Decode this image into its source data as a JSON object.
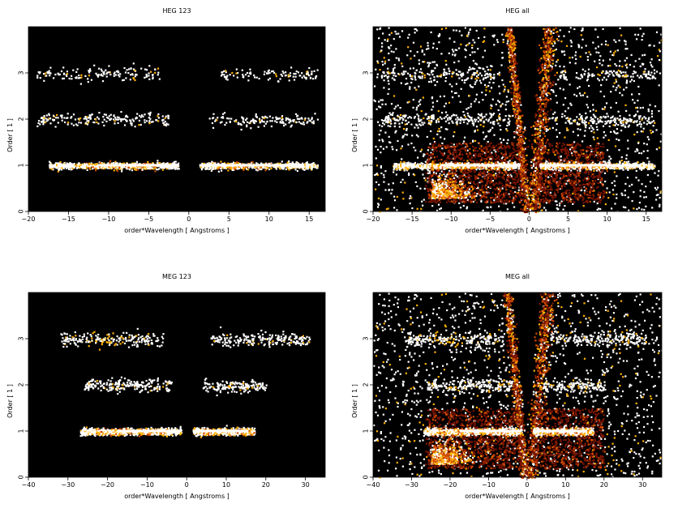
{
  "chart_data": [
    {
      "type": "heatmap",
      "title": "HEG 123",
      "xlabel": "order*Wavelength [ Angstroms ]",
      "ylabel": "Order [ 1 ]",
      "xlim": [
        -20,
        17
      ],
      "ylim": [
        0,
        4
      ],
      "xticks": [
        -20,
        -15,
        -10,
        -5,
        0,
        5,
        10,
        15
      ],
      "yticks": [
        0,
        1,
        2,
        3
      ],
      "colormap": [
        "#000000",
        "#7a1400",
        "#d24a00",
        "#ffb000",
        "#ffffff"
      ],
      "bands": [
        {
          "order": 1,
          "xmin": -17.5,
          "xmax": 16.0,
          "gap": [
            -1.3,
            1.3
          ],
          "peak": -8.5,
          "peak2": 7.0,
          "density": 1.0
        },
        {
          "order": 2,
          "xmin": -19.0,
          "xmax": 16.0,
          "gap": [
            -2.5,
            2.5
          ],
          "density": 0.45
        },
        {
          "order": 3,
          "xmin": -19.0,
          "xmax": 16.0,
          "gap": [
            -3.5,
            3.5
          ],
          "density": 0.35
        }
      ]
    },
    {
      "type": "heatmap",
      "title": "HEG all",
      "xlabel": "order*Wavelength [ Angstroms ]",
      "ylabel": "Order [ 1 ]",
      "xlim": [
        -20,
        17
      ],
      "ylim": [
        0,
        4
      ],
      "xticks": [
        -20,
        -15,
        -10,
        -5,
        0,
        5,
        10,
        15
      ],
      "yticks": [
        0,
        1,
        2,
        3
      ],
      "colormap": [
        "#000000",
        "#7a1400",
        "#d24a00",
        "#ffb000",
        "#ffffff"
      ],
      "background_noise": true,
      "bands": [
        {
          "order": 1,
          "xmin": -17.5,
          "xmax": 16.0,
          "gap": [
            -1.3,
            1.3
          ],
          "peak": -8.5,
          "peak2": 7.0,
          "density": 1.0
        },
        {
          "order": 2,
          "xmin": -19.0,
          "xmax": 16.0,
          "gap": [
            -2.5,
            2.5
          ],
          "density": 0.45
        },
        {
          "order": 3,
          "xmin": -19.0,
          "xmax": 16.0,
          "gap": [
            -3.5,
            3.5
          ],
          "density": 0.35
        }
      ]
    },
    {
      "type": "heatmap",
      "title": "MEG 123",
      "xlabel": "order*Wavelength [ Angstroms ]",
      "ylabel": "Order [ 1 ]",
      "xlim": [
        -40,
        35
      ],
      "ylim": [
        0,
        4
      ],
      "xticks": [
        -40,
        -30,
        -20,
        -10,
        0,
        10,
        20,
        30
      ],
      "yticks": [
        0,
        1,
        2,
        3
      ],
      "colormap": [
        "#000000",
        "#7a1400",
        "#d24a00",
        "#ffb000",
        "#ffffff"
      ],
      "bands": [
        {
          "order": 1,
          "xmin": -27.0,
          "xmax": 17.0,
          "gap": [
            -1.5,
            1.5
          ],
          "peak": -14.0,
          "peak2": 12.0,
          "density": 1.0
        },
        {
          "order": 2,
          "xmin": -26.0,
          "xmax": 20.0,
          "gap": [
            -4.0,
            4.0
          ],
          "density": 0.5
        },
        {
          "order": 3,
          "xmin": -32.0,
          "xmax": 31.0,
          "gap": [
            -6.0,
            6.0
          ],
          "density": 0.6
        }
      ]
    },
    {
      "type": "heatmap",
      "title": "MEG all",
      "xlabel": "order*Wavelength [ Angstroms ]",
      "ylabel": "Order [ 1 ]",
      "xlim": [
        -40,
        35
      ],
      "ylim": [
        0,
        4
      ],
      "xticks": [
        -40,
        -30,
        -20,
        -10,
        0,
        10,
        20,
        30
      ],
      "yticks": [
        0,
        1,
        2,
        3
      ],
      "colormap": [
        "#000000",
        "#7a1400",
        "#d24a00",
        "#ffb000",
        "#ffffff"
      ],
      "background_noise": true,
      "bands": [
        {
          "order": 1,
          "xmin": -27.0,
          "xmax": 17.0,
          "gap": [
            -1.5,
            1.5
          ],
          "peak": -14.0,
          "peak2": 12.0,
          "density": 1.0
        },
        {
          "order": 2,
          "xmin": -26.0,
          "xmax": 20.0,
          "gap": [
            -4.0,
            4.0
          ],
          "density": 0.5
        },
        {
          "order": 3,
          "xmin": -32.0,
          "xmax": 31.0,
          "gap": [
            -6.0,
            6.0
          ],
          "density": 0.6
        }
      ]
    }
  ]
}
